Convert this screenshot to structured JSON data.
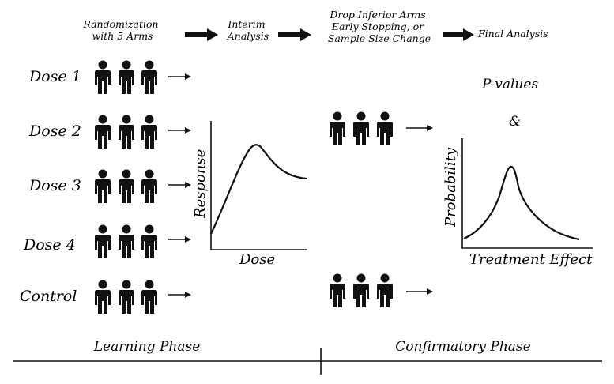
{
  "workflow": {
    "step1": [
      "Randomization",
      "with 5 Arms"
    ],
    "step2": [
      "Interim",
      "Analysis"
    ],
    "step3": [
      "Drop Inferior Arms",
      "Early Stopping, or",
      "Sample Size Change"
    ],
    "step4": "Final Analysis"
  },
  "arms": [
    "Dose 1",
    "Dose 2",
    "Dose 3",
    "Dose 4",
    "Control"
  ],
  "left_chart": {
    "xlabel": "Dose",
    "ylabel": "Response"
  },
  "right_chart": {
    "xlabel": "Treatment Effect",
    "ylabel": "Probability"
  },
  "annotations": {
    "pvalues": "P-values",
    "ampersand": "&"
  },
  "phases": {
    "learning": "Learning Phase",
    "confirmatory": "Confirmatory Phase"
  },
  "icons": {
    "person": "person-icon",
    "arrow": "arrow-right-icon"
  }
}
